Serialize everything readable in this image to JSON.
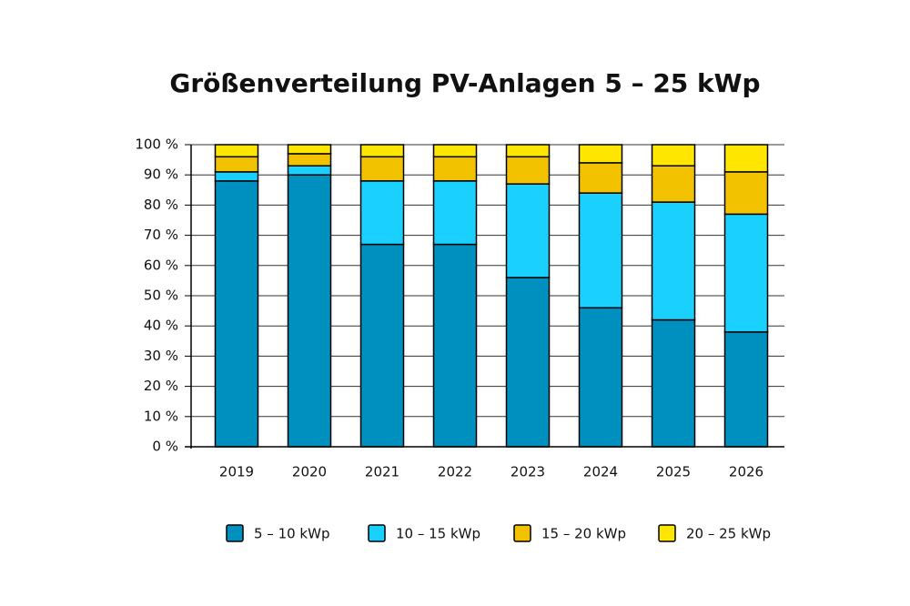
{
  "chart_data": {
    "type": "stacked_bar",
    "title": "Größenverteilung PV-Anlagen 5 – 25 kWp",
    "categories": [
      "2019",
      "2020",
      "2021",
      "2022",
      "2023",
      "2024",
      "2025",
      "2026"
    ],
    "series": [
      {
        "name": "5 – 10 kWp",
        "color": "#0090c0",
        "values": [
          88,
          90,
          67,
          67,
          56,
          46,
          42,
          38
        ]
      },
      {
        "name": "10 – 15 kWp",
        "color": "#1ad0ff",
        "values": [
          3,
          3,
          21,
          21,
          31,
          38,
          39,
          39
        ]
      },
      {
        "name": "15 – 20 kWp",
        "color": "#f2c200",
        "values": [
          5,
          4,
          8,
          8,
          9,
          10,
          12,
          14
        ]
      },
      {
        "name": "20 – 25 kWp",
        "color": "#ffe600",
        "values": [
          4,
          3,
          4,
          4,
          4,
          6,
          7,
          9
        ]
      }
    ],
    "ylim": [
      0,
      100
    ],
    "yticks": [
      {
        "value": 0,
        "label": "0 %"
      },
      {
        "value": 10,
        "label": "10 %"
      },
      {
        "value": 20,
        "label": "20 %"
      },
      {
        "value": 30,
        "label": "30 %"
      },
      {
        "value": 40,
        "label": "40 %"
      },
      {
        "value": 50,
        "label": "50 %"
      },
      {
        "value": 60,
        "label": "60 %"
      },
      {
        "value": 70,
        "label": "70 %"
      },
      {
        "value": 80,
        "label": "80 %"
      },
      {
        "value": 90,
        "label": "90 %"
      },
      {
        "value": 100,
        "label": "100 %"
      }
    ],
    "grid": true
  }
}
